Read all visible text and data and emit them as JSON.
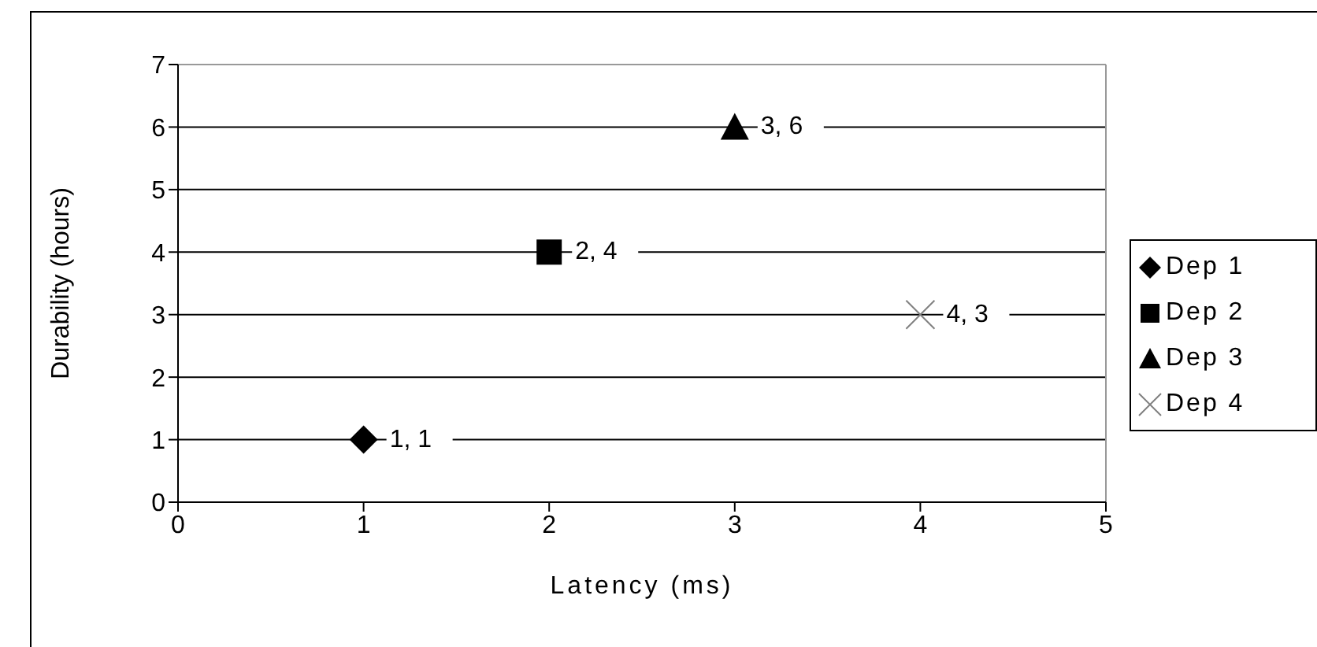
{
  "chart_data": {
    "type": "scatter",
    "xlabel": "Latency (ms)",
    "ylabel": "Durability (hours)",
    "xlim": [
      0,
      5
    ],
    "xticks": [
      0,
      1,
      2,
      3,
      4,
      5
    ],
    "ylim": [
      0,
      7
    ],
    "yticks": [
      0,
      1,
      2,
      3,
      4,
      5,
      6,
      7
    ],
    "grid": "y",
    "legend": "right",
    "series": [
      {
        "name": "Dep 1",
        "color": "#000000",
        "marker": "diamond",
        "x": [
          1
        ],
        "values": [
          1
        ],
        "value_labels": [
          "1, 1"
        ]
      },
      {
        "name": "Dep 2",
        "color": "#000000",
        "marker": "square",
        "x": [
          2
        ],
        "values": [
          4
        ],
        "value_labels": [
          "2, 4"
        ]
      },
      {
        "name": "Dep 3",
        "color": "#000000",
        "marker": "triangle",
        "x": [
          3
        ],
        "values": [
          6
        ],
        "value_labels": [
          "3, 6"
        ]
      },
      {
        "name": "Dep 4",
        "color": "#808080",
        "marker": "cross",
        "x": [
          4
        ],
        "values": [
          3
        ],
        "value_labels": [
          "4, 3"
        ]
      }
    ]
  }
}
